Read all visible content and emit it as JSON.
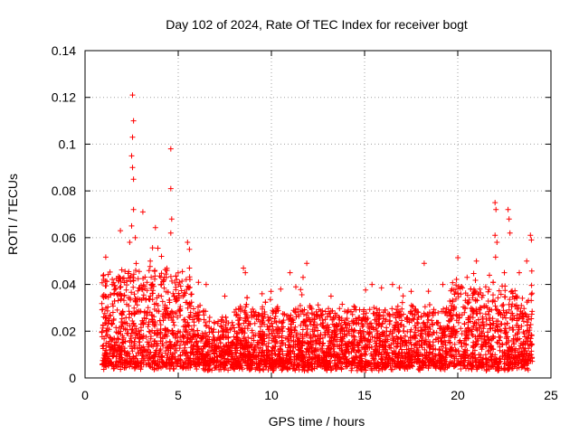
{
  "chart_data": {
    "type": "scatter",
    "title": "Day 102 of 2024, Rate Of TEC Index for receiver bogt",
    "xlabel": "GPS time / hours",
    "ylabel": "ROTI / TECUs",
    "xlim": [
      0,
      25
    ],
    "ylim": [
      0,
      0.14
    ],
    "x_ticks": [
      0,
      5,
      10,
      15,
      20,
      25
    ],
    "x_tick_labels": [
      "0",
      "5",
      "10",
      "15",
      "20",
      "25"
    ],
    "y_ticks": [
      0,
      0.02,
      0.04,
      0.06,
      0.08,
      0.1,
      0.12,
      0.14
    ],
    "y_tick_labels": [
      "0",
      "0.02",
      "0.04",
      "0.06",
      "0.08",
      "0.1",
      "0.12",
      "0.14"
    ],
    "grid": true,
    "marker": "+",
    "marker_color": "#ff0000",
    "series": [
      {
        "name": "ROTI",
        "x_range": [
          0.9,
          24.0
        ],
        "typical_range": [
          0.005,
          0.03
        ],
        "outliers": [
          [
            2.55,
            0.121
          ],
          [
            2.6,
            0.11
          ],
          [
            2.55,
            0.103
          ],
          [
            2.5,
            0.095
          ],
          [
            2.55,
            0.09
          ],
          [
            2.6,
            0.085
          ],
          [
            4.6,
            0.098
          ],
          [
            4.6,
            0.081
          ],
          [
            4.65,
            0.068
          ],
          [
            4.6,
            0.062
          ],
          [
            2.6,
            0.072
          ],
          [
            3.1,
            0.071
          ],
          [
            2.5,
            0.065
          ],
          [
            2.7,
            0.06
          ],
          [
            1.9,
            0.063
          ],
          [
            2.4,
            0.058
          ],
          [
            5.5,
            0.058
          ],
          [
            5.6,
            0.055
          ],
          [
            4.1,
            0.052
          ],
          [
            3.5,
            0.05
          ],
          [
            4.4,
            0.046
          ],
          [
            5.6,
            0.047
          ],
          [
            8.5,
            0.047
          ],
          [
            8.6,
            0.045
          ],
          [
            11.0,
            0.045
          ],
          [
            11.9,
            0.049
          ],
          [
            11.7,
            0.043
          ],
          [
            18.2,
            0.049
          ],
          [
            22.0,
            0.075
          ],
          [
            22.05,
            0.072
          ],
          [
            22.7,
            0.072
          ],
          [
            22.75,
            0.068
          ],
          [
            22.0,
            0.061
          ],
          [
            22.1,
            0.058
          ],
          [
            22.8,
            0.062
          ],
          [
            23.9,
            0.061
          ],
          [
            23.95,
            0.059
          ],
          [
            21.0,
            0.05
          ],
          [
            22.5,
            0.045
          ],
          [
            23.7,
            0.05
          ],
          [
            6.5,
            0.04
          ],
          [
            7.5,
            0.035
          ],
          [
            9.5,
            0.036
          ],
          [
            10.5,
            0.038
          ],
          [
            13.2,
            0.035
          ],
          [
            15.4,
            0.04
          ],
          [
            16.5,
            0.04
          ],
          [
            17.5,
            0.037
          ],
          [
            19.2,
            0.04
          ],
          [
            20.5,
            0.043
          ],
          [
            23.3,
            0.045
          ]
        ]
      }
    ]
  }
}
